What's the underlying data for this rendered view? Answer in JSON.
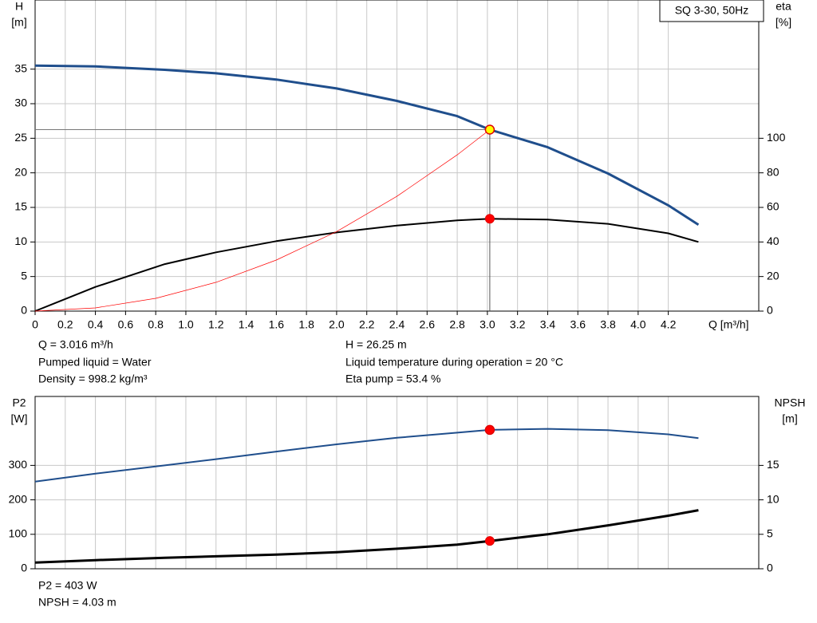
{
  "chart_data": [
    {
      "type": "line",
      "title": "SQ 3-30, 50Hz",
      "ylabel": [
        "H",
        "[m]"
      ],
      "y2label": [
        "eta",
        "[%]"
      ],
      "xlabel": "Q [m³/h]",
      "xlim": [
        0,
        4.8
      ],
      "ylim": [
        0,
        45
      ],
      "y2lim": [
        0,
        180
      ],
      "xticks": [
        0,
        0.2,
        0.4,
        0.6,
        0.8,
        {
          "value": 1,
          "label": "1.0"
        },
        1.2,
        1.4,
        1.6,
        1.8,
        {
          "value": 2,
          "label": "2.0"
        },
        2.2,
        2.4,
        2.6,
        2.8,
        {
          "value": 3,
          "label": "3.0"
        },
        3.2,
        3.4,
        3.6,
        3.8,
        {
          "value": 4,
          "label": "4.0"
        },
        4.2
      ],
      "yticks": [
        0,
        5,
        10,
        15,
        20,
        25,
        30,
        35
      ],
      "y2ticks": [
        0,
        20,
        40,
        60,
        80,
        100
      ],
      "grid": true,
      "guides": true,
      "series": [
        {
          "color": "#1f4e8c",
          "width": 3,
          "x": [
            0,
            0.4,
            0.86,
            1.2,
            1.6,
            2.0,
            2.4,
            2.8,
            3.016,
            3.4,
            3.8,
            4.2,
            4.4
          ],
          "values": [
            35.5,
            35.4,
            34.9,
            34.4,
            33.5,
            32.2,
            30.4,
            28.2,
            26.25,
            23.7,
            19.9,
            15.3,
            12.5
          ]
        },
        {
          "color": "#000000",
          "width": 2,
          "axis": "y2",
          "x": [
            0,
            0.4,
            0.86,
            1.2,
            1.6,
            2.0,
            2.4,
            2.8,
            3.016,
            3.4,
            3.8,
            4.2,
            4.4
          ],
          "values": [
            0,
            14,
            27.2,
            34,
            40.5,
            45.5,
            49.5,
            52.5,
            53.4,
            53,
            50.5,
            45,
            40
          ]
        },
        {
          "color": "#ff0000",
          "width": 0.7,
          "x": [
            0,
            0.4,
            0.8,
            1.2,
            1.6,
            2.0,
            2.4,
            2.8,
            3.016
          ],
          "values": [
            0,
            0.46,
            1.85,
            4.16,
            7.39,
            11.5,
            16.6,
            22.6,
            26.25
          ]
        }
      ],
      "operating_point": {
        "x": 3.016,
        "y": 26.25,
        "y2": 53.4,
        "colors": [
          "#ffff00",
          "#ff0000"
        ]
      },
      "notes": [
        "Q = 3.016 m³/h",
        "Pumped liquid = Water",
        "Density = 998.2 kg/m³",
        "H = 26.25 m",
        "Liquid temperature during operation = 20 °C",
        "Eta pump = 53.4 %"
      ]
    },
    {
      "type": "line",
      "ylabel": [
        "P2",
        "[W]"
      ],
      "y2label": [
        "NPSH",
        "[m]"
      ],
      "xlim": [
        0,
        4.8
      ],
      "ylim": [
        0,
        500
      ],
      "y2lim": [
        0,
        25
      ],
      "yticks": [
        0,
        100,
        200,
        300
      ],
      "y2ticks": [
        0,
        5,
        10,
        15
      ],
      "grid": true,
      "series": [
        {
          "color": "#1f4e8c",
          "width": 2,
          "x": [
            0,
            0.4,
            0.86,
            1.2,
            1.6,
            2.0,
            2.4,
            2.8,
            3.016,
            3.4,
            3.8,
            4.2,
            4.4
          ],
          "values": [
            253,
            276,
            300,
            318,
            340,
            361,
            380,
            395,
            403,
            406,
            402,
            390,
            379
          ]
        },
        {
          "color": "#000000",
          "width": 3,
          "axis": "y2",
          "x": [
            0,
            0.4,
            0.86,
            1.2,
            1.6,
            2.0,
            2.4,
            2.8,
            3.016,
            3.4,
            3.8,
            4.2,
            4.4
          ],
          "values": [
            0.9,
            1.25,
            1.6,
            1.8,
            2.05,
            2.4,
            2.9,
            3.5,
            4.03,
            5.0,
            6.3,
            7.7,
            8.5
          ]
        }
      ],
      "operating_point": {
        "x": 3.016,
        "y": 403,
        "y2": 4.03,
        "colors": [
          "#ff0000",
          "#ff0000"
        ]
      },
      "notes": [
        "P2 = 403 W",
        "NPSH = 4.03 m"
      ]
    }
  ]
}
